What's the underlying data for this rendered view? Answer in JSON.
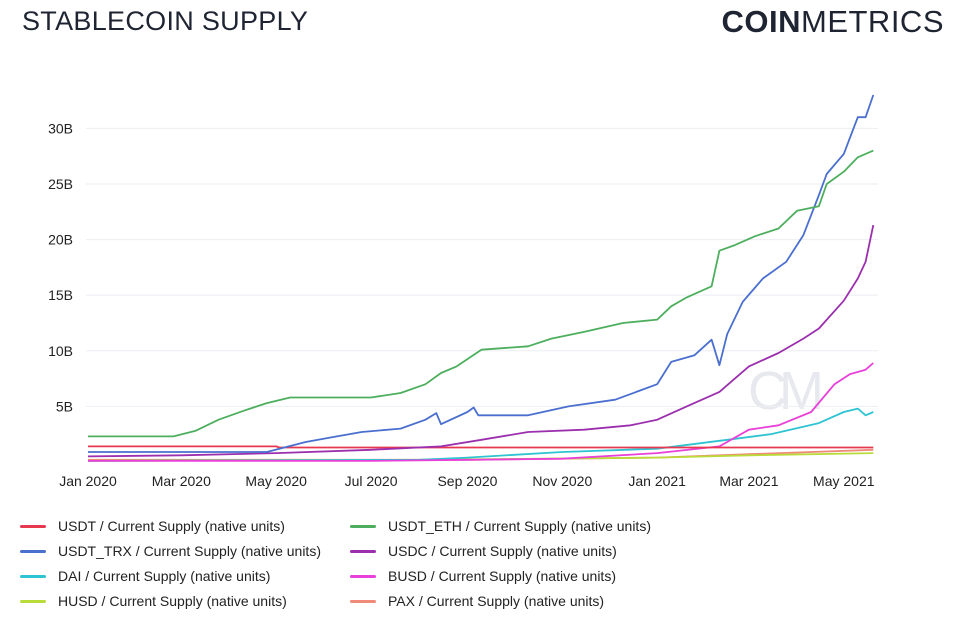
{
  "header": {
    "title": "STABLECOIN SUPPLY",
    "brand_bold": "COIN",
    "brand_light": "METRICS"
  },
  "watermark": "CM",
  "chart_data": {
    "type": "line",
    "title": "STABLECOIN SUPPLY",
    "xlabel": "",
    "ylabel": "",
    "x_ticks": [
      "Jan 2020",
      "Mar 2020",
      "May 2020",
      "Jul 2020",
      "Sep 2020",
      "Nov 2020",
      "Jan 2021",
      "Mar 2021",
      "May 2021"
    ],
    "y_ticks": [
      "5B",
      "10B",
      "15B",
      "20B",
      "25B",
      "30B"
    ],
    "ylim": [
      0,
      33
    ],
    "xlim": [
      "2020-01-01",
      "2021-05-23"
    ],
    "grid": true,
    "legend_position": "bottom",
    "series": [
      {
        "name": "USDT / Current Supply (native units)",
        "color": "#e8384f",
        "points": [
          [
            "2020-01-01",
            1.4
          ],
          [
            "2020-05-01",
            1.4
          ],
          [
            "2020-05-03",
            1.3
          ],
          [
            "2021-05-20",
            1.3
          ]
        ]
      },
      {
        "name": "USDT_ETH / Current Supply (native units)",
        "color": "#4daf5e",
        "points": [
          [
            "2020-01-01",
            2.3
          ],
          [
            "2020-02-25",
            2.3
          ],
          [
            "2020-03-10",
            2.8
          ],
          [
            "2020-03-25",
            3.8
          ],
          [
            "2020-04-10",
            4.6
          ],
          [
            "2020-04-25",
            5.3
          ],
          [
            "2020-05-10",
            5.8
          ],
          [
            "2020-06-01",
            5.8
          ],
          [
            "2020-07-01",
            5.8
          ],
          [
            "2020-07-20",
            6.2
          ],
          [
            "2020-08-05",
            7.0
          ],
          [
            "2020-08-15",
            8.0
          ],
          [
            "2020-08-25",
            8.6
          ],
          [
            "2020-09-10",
            10.1
          ],
          [
            "2020-10-10",
            10.4
          ],
          [
            "2020-10-25",
            11.1
          ],
          [
            "2020-11-15",
            11.7
          ],
          [
            "2020-12-10",
            12.5
          ],
          [
            "2021-01-01",
            12.8
          ],
          [
            "2021-01-10",
            14.0
          ],
          [
            "2021-01-20",
            14.8
          ],
          [
            "2021-02-05",
            15.8
          ],
          [
            "2021-02-10",
            19.0
          ],
          [
            "2021-02-20",
            19.5
          ],
          [
            "2021-03-05",
            20.3
          ],
          [
            "2021-03-20",
            21.0
          ],
          [
            "2021-04-01",
            22.6
          ],
          [
            "2021-04-15",
            23.0
          ],
          [
            "2021-04-20",
            25.0
          ],
          [
            "2021-05-01",
            26.1
          ],
          [
            "2021-05-10",
            27.4
          ],
          [
            "2021-05-20",
            28.0
          ]
        ]
      },
      {
        "name": "USDT_TRX / Current Supply (native units)",
        "color": "#4a6fcf",
        "points": [
          [
            "2020-01-01",
            0.9
          ],
          [
            "2020-04-25",
            0.9
          ],
          [
            "2020-05-20",
            1.8
          ],
          [
            "2020-06-05",
            2.2
          ],
          [
            "2020-06-25",
            2.7
          ],
          [
            "2020-07-20",
            3.0
          ],
          [
            "2020-08-05",
            3.8
          ],
          [
            "2020-08-12",
            4.4
          ],
          [
            "2020-08-15",
            3.4
          ],
          [
            "2020-09-01",
            4.5
          ],
          [
            "2020-09-05",
            4.9
          ],
          [
            "2020-09-08",
            4.2
          ],
          [
            "2020-10-10",
            4.2
          ],
          [
            "2020-11-05",
            5.0
          ],
          [
            "2020-12-05",
            5.6
          ],
          [
            "2021-01-01",
            7.0
          ],
          [
            "2021-01-10",
            9.0
          ],
          [
            "2021-01-25",
            9.6
          ],
          [
            "2021-02-05",
            11.0
          ],
          [
            "2021-02-10",
            8.7
          ],
          [
            "2021-02-15",
            11.5
          ],
          [
            "2021-02-25",
            14.4
          ],
          [
            "2021-03-10",
            16.5
          ],
          [
            "2021-03-25",
            18.0
          ],
          [
            "2021-04-05",
            20.4
          ],
          [
            "2021-04-15",
            24.0
          ],
          [
            "2021-04-20",
            25.9
          ],
          [
            "2021-05-01",
            27.7
          ],
          [
            "2021-05-10",
            31.0
          ],
          [
            "2021-05-15",
            31.0
          ],
          [
            "2021-05-20",
            33.0
          ]
        ]
      },
      {
        "name": "USDC / Current Supply (native units)",
        "color": "#9b2fae",
        "points": [
          [
            "2020-01-01",
            0.5
          ],
          [
            "2020-03-01",
            0.6
          ],
          [
            "2020-05-01",
            0.8
          ],
          [
            "2020-07-01",
            1.1
          ],
          [
            "2020-08-15",
            1.4
          ],
          [
            "2020-09-10",
            2.0
          ],
          [
            "2020-10-10",
            2.7
          ],
          [
            "2020-11-15",
            2.9
          ],
          [
            "2020-12-15",
            3.3
          ],
          [
            "2021-01-01",
            3.8
          ],
          [
            "2021-01-20",
            5.0
          ],
          [
            "2021-02-10",
            6.3
          ],
          [
            "2021-03-01",
            8.6
          ],
          [
            "2021-03-20",
            9.8
          ],
          [
            "2021-04-05",
            11.1
          ],
          [
            "2021-04-15",
            12.0
          ],
          [
            "2021-05-01",
            14.5
          ],
          [
            "2021-05-10",
            16.5
          ],
          [
            "2021-05-15",
            18.0
          ],
          [
            "2021-05-20",
            21.3
          ]
        ]
      },
      {
        "name": "DAI / Current Supply (native units)",
        "color": "#2ec4d2",
        "points": [
          [
            "2020-01-01",
            0.1
          ],
          [
            "2020-08-01",
            0.2
          ],
          [
            "2020-09-01",
            0.4
          ],
          [
            "2020-11-01",
            0.9
          ],
          [
            "2021-01-01",
            1.2
          ],
          [
            "2021-02-15",
            2.0
          ],
          [
            "2021-03-15",
            2.5
          ],
          [
            "2021-04-15",
            3.5
          ],
          [
            "2021-05-01",
            4.5
          ],
          [
            "2021-05-10",
            4.8
          ],
          [
            "2021-05-15",
            4.2
          ],
          [
            "2021-05-20",
            4.5
          ]
        ]
      },
      {
        "name": "BUSD / Current Supply (native units)",
        "color": "#e840d8",
        "points": [
          [
            "2020-01-01",
            0.1
          ],
          [
            "2020-07-01",
            0.1
          ],
          [
            "2020-09-01",
            0.2
          ],
          [
            "2020-11-01",
            0.3
          ],
          [
            "2021-01-01",
            0.8
          ],
          [
            "2021-02-10",
            1.4
          ],
          [
            "2021-03-01",
            2.9
          ],
          [
            "2021-03-20",
            3.3
          ],
          [
            "2021-04-10",
            4.5
          ],
          [
            "2021-04-25",
            7.0
          ],
          [
            "2021-05-05",
            7.9
          ],
          [
            "2021-05-15",
            8.3
          ],
          [
            "2021-05-20",
            8.9
          ]
        ]
      },
      {
        "name": "HUSD / Current Supply (native units)",
        "color": "#b9dc3a",
        "points": [
          [
            "2020-01-01",
            0.1
          ],
          [
            "2020-08-01",
            0.2
          ],
          [
            "2021-01-01",
            0.4
          ],
          [
            "2021-03-01",
            0.6
          ],
          [
            "2021-05-20",
            0.8
          ]
        ]
      },
      {
        "name": "PAX / Current Supply (native units)",
        "color": "#f08a7a",
        "points": [
          [
            "2020-01-01",
            0.2
          ],
          [
            "2020-06-01",
            0.2
          ],
          [
            "2020-09-01",
            0.2
          ],
          [
            "2021-01-01",
            0.4
          ],
          [
            "2021-03-01",
            0.7
          ],
          [
            "2021-05-20",
            1.1
          ]
        ]
      }
    ]
  }
}
